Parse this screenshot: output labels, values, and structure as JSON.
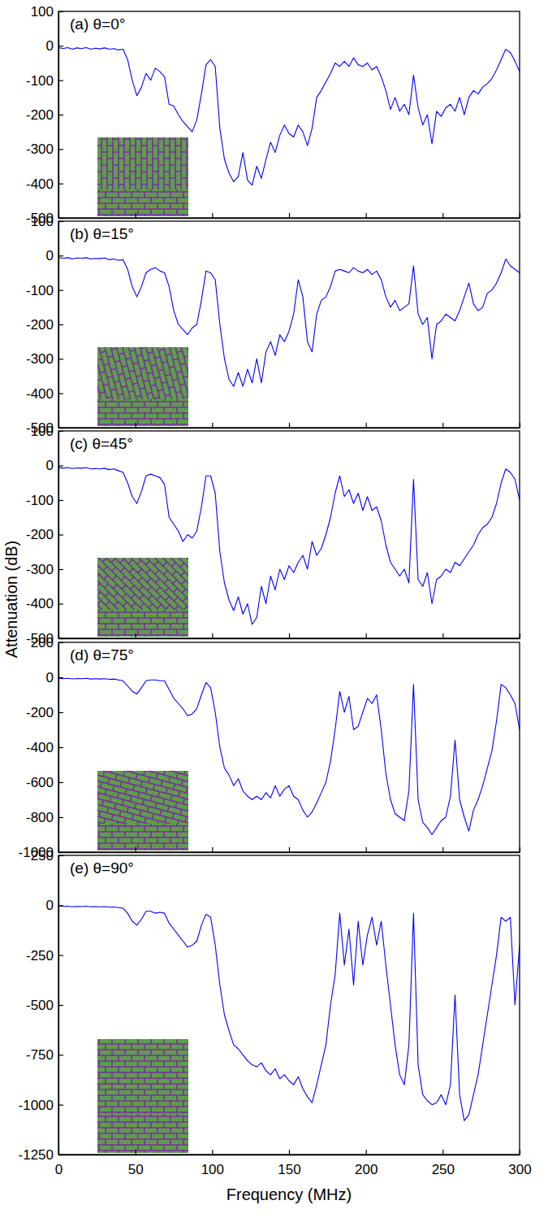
{
  "chart_data": [
    {
      "type": "line",
      "title": "(a) θ=0°",
      "color": "#0000ff",
      "tick_labels": "y",
      "xlim": [
        0,
        300
      ],
      "xticks": [
        0,
        50,
        100,
        150,
        200,
        250,
        300
      ],
      "ylim": [
        -500,
        100
      ],
      "yticks": [
        -500,
        -400,
        -300,
        -200,
        -100,
        0,
        100
      ],
      "x": [
        0,
        3,
        6,
        9,
        12,
        15,
        18,
        21,
        24,
        27,
        30,
        33,
        36,
        39,
        42,
        45,
        48,
        51,
        54,
        57,
        60,
        63,
        66,
        69,
        72,
        75,
        78,
        81,
        84,
        87,
        90,
        93,
        96,
        99,
        102,
        105,
        108,
        111,
        114,
        117,
        120,
        123,
        126,
        129,
        132,
        135,
        138,
        141,
        144,
        147,
        150,
        153,
        156,
        159,
        162,
        165,
        168,
        171,
        174,
        177,
        180,
        183,
        186,
        189,
        192,
        195,
        198,
        201,
        204,
        207,
        210,
        213,
        216,
        219,
        222,
        225,
        228,
        231,
        234,
        237,
        240,
        243,
        246,
        249,
        252,
        255,
        258,
        261,
        264,
        267,
        270,
        273,
        276,
        279,
        282,
        285,
        288,
        291,
        294,
        297,
        300
      ],
      "values": [
        -5,
        -8,
        -5,
        -10,
        -6,
        -8,
        -5,
        -10,
        -7,
        -9,
        -6,
        -10,
        -8,
        -12,
        -10,
        -40,
        -100,
        -145,
        -120,
        -80,
        -100,
        -65,
        -75,
        -90,
        -170,
        -175,
        -200,
        -220,
        -235,
        -250,
        -215,
        -140,
        -55,
        -40,
        -60,
        -240,
        -330,
        -370,
        -395,
        -380,
        -310,
        -390,
        -405,
        -350,
        -385,
        -330,
        -280,
        -310,
        -260,
        -230,
        -255,
        -265,
        -230,
        -250,
        -290,
        -240,
        -150,
        -130,
        -105,
        -80,
        -50,
        -60,
        -45,
        -60,
        -35,
        -55,
        -60,
        -50,
        -70,
        -60,
        -90,
        -130,
        -185,
        -150,
        -190,
        -170,
        -200,
        -85,
        -180,
        -230,
        -200,
        -285,
        -190,
        -205,
        -180,
        -170,
        -190,
        -150,
        -200,
        -150,
        -130,
        -140,
        -120,
        -110,
        -95,
        -70,
        -40,
        -10,
        -20,
        -45,
        -75
      ]
    },
    {
      "type": "line",
      "title": "(b) θ=15°",
      "color": "#0000ff",
      "tick_labels": "y",
      "xlim": [
        0,
        300
      ],
      "xticks": [
        0,
        50,
        100,
        150,
        200,
        250,
        300
      ],
      "ylim": [
        -500,
        100
      ],
      "yticks": [
        -500,
        -400,
        -300,
        -200,
        -100,
        0,
        100
      ],
      "x": [
        0,
        3,
        6,
        9,
        12,
        15,
        18,
        21,
        24,
        27,
        30,
        33,
        36,
        39,
        42,
        45,
        48,
        51,
        54,
        57,
        60,
        63,
        66,
        69,
        72,
        75,
        78,
        81,
        84,
        87,
        90,
        93,
        96,
        99,
        102,
        105,
        108,
        111,
        114,
        117,
        120,
        123,
        126,
        129,
        132,
        135,
        138,
        141,
        144,
        147,
        150,
        153,
        156,
        159,
        162,
        165,
        168,
        171,
        174,
        177,
        180,
        183,
        186,
        189,
        192,
        195,
        198,
        201,
        204,
        207,
        210,
        213,
        216,
        219,
        222,
        225,
        228,
        231,
        234,
        237,
        240,
        243,
        246,
        249,
        252,
        255,
        258,
        261,
        264,
        267,
        270,
        273,
        276,
        279,
        282,
        285,
        288,
        291,
        294,
        297,
        300
      ],
      "values": [
        -5,
        -8,
        -6,
        -10,
        -7,
        -8,
        -6,
        -10,
        -8,
        -9,
        -7,
        -12,
        -10,
        -14,
        -12,
        -40,
        -90,
        -120,
        -90,
        -50,
        -40,
        -35,
        -45,
        -50,
        -90,
        -160,
        -200,
        -215,
        -230,
        -210,
        -200,
        -130,
        -45,
        -50,
        -70,
        -200,
        -300,
        -360,
        -380,
        -340,
        -380,
        -330,
        -370,
        -300,
        -370,
        -280,
        -250,
        -290,
        -230,
        -250,
        -220,
        -170,
        -70,
        -120,
        -250,
        -280,
        -170,
        -130,
        -120,
        -90,
        -45,
        -40,
        -45,
        -50,
        -35,
        -45,
        -50,
        -40,
        -55,
        -45,
        -70,
        -120,
        -150,
        -130,
        -160,
        -150,
        -140,
        -30,
        -170,
        -200,
        -180,
        -300,
        -200,
        -190,
        -170,
        -180,
        -190,
        -160,
        -120,
        -80,
        -140,
        -160,
        -150,
        -110,
        -100,
        -80,
        -50,
        -10,
        -30,
        -40,
        -50
      ]
    },
    {
      "type": "line",
      "title": "(c) θ=45°",
      "color": "#0000ff",
      "tick_labels": "y",
      "ylabel": "Attenuation (dB)",
      "xlim": [
        0,
        300
      ],
      "xticks": [
        0,
        50,
        100,
        150,
        200,
        250,
        300
      ],
      "ylim": [
        -500,
        100
      ],
      "yticks": [
        -500,
        -400,
        -300,
        -200,
        -100,
        0,
        100
      ],
      "x": [
        0,
        3,
        6,
        9,
        12,
        15,
        18,
        21,
        24,
        27,
        30,
        33,
        36,
        39,
        42,
        45,
        48,
        51,
        54,
        57,
        60,
        63,
        66,
        69,
        72,
        75,
        78,
        81,
        84,
        87,
        90,
        93,
        96,
        99,
        102,
        105,
        108,
        111,
        114,
        117,
        120,
        123,
        126,
        129,
        132,
        135,
        138,
        141,
        144,
        147,
        150,
        153,
        156,
        159,
        162,
        165,
        168,
        171,
        174,
        177,
        180,
        183,
        186,
        189,
        192,
        195,
        198,
        201,
        204,
        207,
        210,
        213,
        216,
        219,
        222,
        225,
        228,
        231,
        234,
        237,
        240,
        243,
        246,
        249,
        252,
        255,
        258,
        261,
        264,
        267,
        270,
        273,
        276,
        279,
        282,
        285,
        288,
        291,
        294,
        297,
        300
      ],
      "values": [
        -5,
        -8,
        -6,
        -9,
        -7,
        -8,
        -6,
        -10,
        -9,
        -10,
        -8,
        -12,
        -10,
        -15,
        -20,
        -50,
        -90,
        -110,
        -75,
        -30,
        -25,
        -30,
        -35,
        -55,
        -150,
        -170,
        -190,
        -220,
        -200,
        -210,
        -190,
        -120,
        -30,
        -30,
        -80,
        -250,
        -340,
        -390,
        -420,
        -380,
        -430,
        -400,
        -460,
        -440,
        -350,
        -400,
        -320,
        -360,
        -300,
        -330,
        -290,
        -310,
        -280,
        -260,
        -300,
        -220,
        -260,
        -240,
        -200,
        -150,
        -80,
        -30,
        -90,
        -70,
        -110,
        -80,
        -130,
        -90,
        -130,
        -120,
        -160,
        -230,
        -280,
        -300,
        -320,
        -300,
        -340,
        -40,
        -330,
        -350,
        -310,
        -400,
        -330,
        -320,
        -300,
        -310,
        -280,
        -290,
        -270,
        -250,
        -230,
        -200,
        -180,
        -170,
        -150,
        -110,
        -50,
        -10,
        -20,
        -40,
        -100
      ]
    },
    {
      "type": "line",
      "title": "(d) θ=75°",
      "color": "#0000ff",
      "tick_labels": "y",
      "xlim": [
        0,
        300
      ],
      "xticks": [
        0,
        50,
        100,
        150,
        200,
        250,
        300
      ],
      "ylim": [
        -1000,
        200
      ],
      "yticks": [
        -1000,
        -800,
        -600,
        -400,
        -200,
        0,
        200
      ],
      "x": [
        0,
        3,
        6,
        9,
        12,
        15,
        18,
        21,
        24,
        27,
        30,
        33,
        36,
        39,
        42,
        45,
        48,
        51,
        54,
        57,
        60,
        63,
        66,
        69,
        72,
        75,
        78,
        81,
        84,
        87,
        90,
        93,
        96,
        99,
        102,
        105,
        108,
        111,
        114,
        117,
        120,
        123,
        126,
        129,
        132,
        135,
        138,
        141,
        144,
        147,
        150,
        153,
        156,
        159,
        162,
        165,
        168,
        171,
        174,
        177,
        180,
        183,
        186,
        189,
        192,
        195,
        198,
        201,
        204,
        207,
        210,
        213,
        216,
        219,
        222,
        225,
        228,
        231,
        234,
        237,
        240,
        243,
        246,
        249,
        252,
        255,
        258,
        261,
        264,
        267,
        270,
        273,
        276,
        279,
        282,
        285,
        288,
        291,
        294,
        297,
        300
      ],
      "values": [
        -5,
        -8,
        -6,
        -9,
        -7,
        -8,
        -6,
        -10,
        -8,
        -10,
        -8,
        -12,
        -10,
        -15,
        -20,
        -50,
        -80,
        -95,
        -60,
        -20,
        -15,
        -15,
        -20,
        -20,
        -70,
        -120,
        -150,
        -180,
        -220,
        -210,
        -180,
        -100,
        -30,
        -60,
        -200,
        -400,
        -520,
        -560,
        -620,
        -580,
        -650,
        -680,
        -700,
        -680,
        -700,
        -660,
        -690,
        -620,
        -680,
        -640,
        -620,
        -680,
        -700,
        -760,
        -800,
        -770,
        -720,
        -660,
        -600,
        -480,
        -300,
        -80,
        -200,
        -110,
        -300,
        -280,
        -200,
        -120,
        -150,
        -100,
        -300,
        -550,
        -700,
        -780,
        -800,
        -820,
        -650,
        -40,
        -700,
        -830,
        -860,
        -900,
        -860,
        -820,
        -800,
        -680,
        -360,
        -700,
        -800,
        -880,
        -760,
        -700,
        -620,
        -520,
        -420,
        -250,
        -40,
        -60,
        -100,
        -150,
        -300
      ]
    },
    {
      "type": "line",
      "title": "(e) θ=90°",
      "color": "#0000ff",
      "xlabel": "Frequency (MHz)",
      "xlim": [
        0,
        300
      ],
      "xticks": [
        0,
        50,
        100,
        150,
        200,
        250,
        300
      ],
      "ylim": [
        -1250,
        250
      ],
      "yticks": [
        -1250,
        -1000,
        -750,
        -500,
        -250,
        0,
        250
      ],
      "x": [
        0,
        3,
        6,
        9,
        12,
        15,
        18,
        21,
        24,
        27,
        30,
        33,
        36,
        39,
        42,
        45,
        48,
        51,
        54,
        57,
        60,
        63,
        66,
        69,
        72,
        75,
        78,
        81,
        84,
        87,
        90,
        93,
        96,
        99,
        102,
        105,
        108,
        111,
        114,
        117,
        120,
        123,
        126,
        129,
        132,
        135,
        138,
        141,
        144,
        147,
        150,
        153,
        156,
        159,
        162,
        165,
        168,
        171,
        174,
        177,
        180,
        183,
        186,
        189,
        192,
        195,
        198,
        201,
        204,
        207,
        210,
        213,
        216,
        219,
        222,
        225,
        228,
        231,
        234,
        237,
        240,
        243,
        246,
        249,
        252,
        255,
        258,
        261,
        264,
        267,
        270,
        273,
        276,
        279,
        282,
        285,
        288,
        291,
        294,
        297,
        300
      ],
      "values": [
        -5,
        -6,
        -5,
        -8,
        -6,
        -7,
        -5,
        -8,
        -7,
        -8,
        -7,
        -10,
        -9,
        -12,
        -15,
        -40,
        -80,
        -100,
        -70,
        -30,
        -30,
        -40,
        -35,
        -40,
        -90,
        -120,
        -150,
        -180,
        -210,
        -200,
        -180,
        -100,
        -45,
        -60,
        -200,
        -400,
        -550,
        -630,
        -700,
        -720,
        -750,
        -780,
        -800,
        -810,
        -790,
        -830,
        -850,
        -820,
        -870,
        -850,
        -880,
        -900,
        -860,
        -920,
        -960,
        -990,
        -900,
        -800,
        -700,
        -500,
        -350,
        -40,
        -300,
        -120,
        -400,
        -80,
        -300,
        -150,
        -60,
        -200,
        -80,
        -300,
        -500,
        -700,
        -850,
        -900,
        -700,
        -40,
        -800,
        -950,
        -980,
        -1000,
        -990,
        -950,
        -1000,
        -900,
        -450,
        -950,
        -1080,
        -1050,
        -950,
        -850,
        -700,
        -550,
        -400,
        -250,
        -60,
        -80,
        -60,
        -500,
        -200
      ]
    }
  ]
}
